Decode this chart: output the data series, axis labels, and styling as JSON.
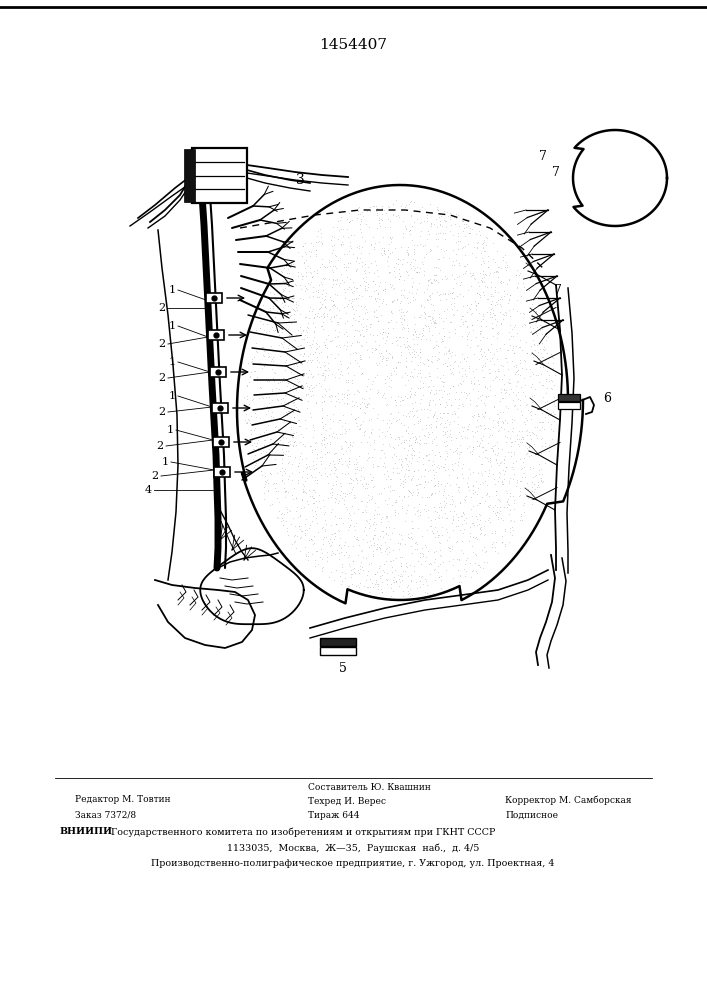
{
  "title_number": "1454407",
  "bg_color": "#ffffff",
  "footer_line1_left": "Редактор М. Товтин",
  "footer_line2_left": "Заказ 7372/8",
  "footer_line1_center": "Составитель Ю. Квашнин",
  "footer_line2_center": "Техред И. Верес",
  "footer_line3_center": "Тираж 644",
  "footer_line1_right": "Корректор М. Самборская",
  "footer_line2_right": "Подписное",
  "footer_bold": "ВНИИПИ",
  "footer_line_vniipii_rest": " Государственного комитета по изобретениям и открытиям при ГКНТ СССР",
  "footer_line_address": "1133035,  Москва,  Ж—35,  Раушская  наб.,  д. 4/5",
  "footer_line_plant": "Производственно-полиграфическое предприятие, г. Ужгород, ул. Проектная, 4"
}
